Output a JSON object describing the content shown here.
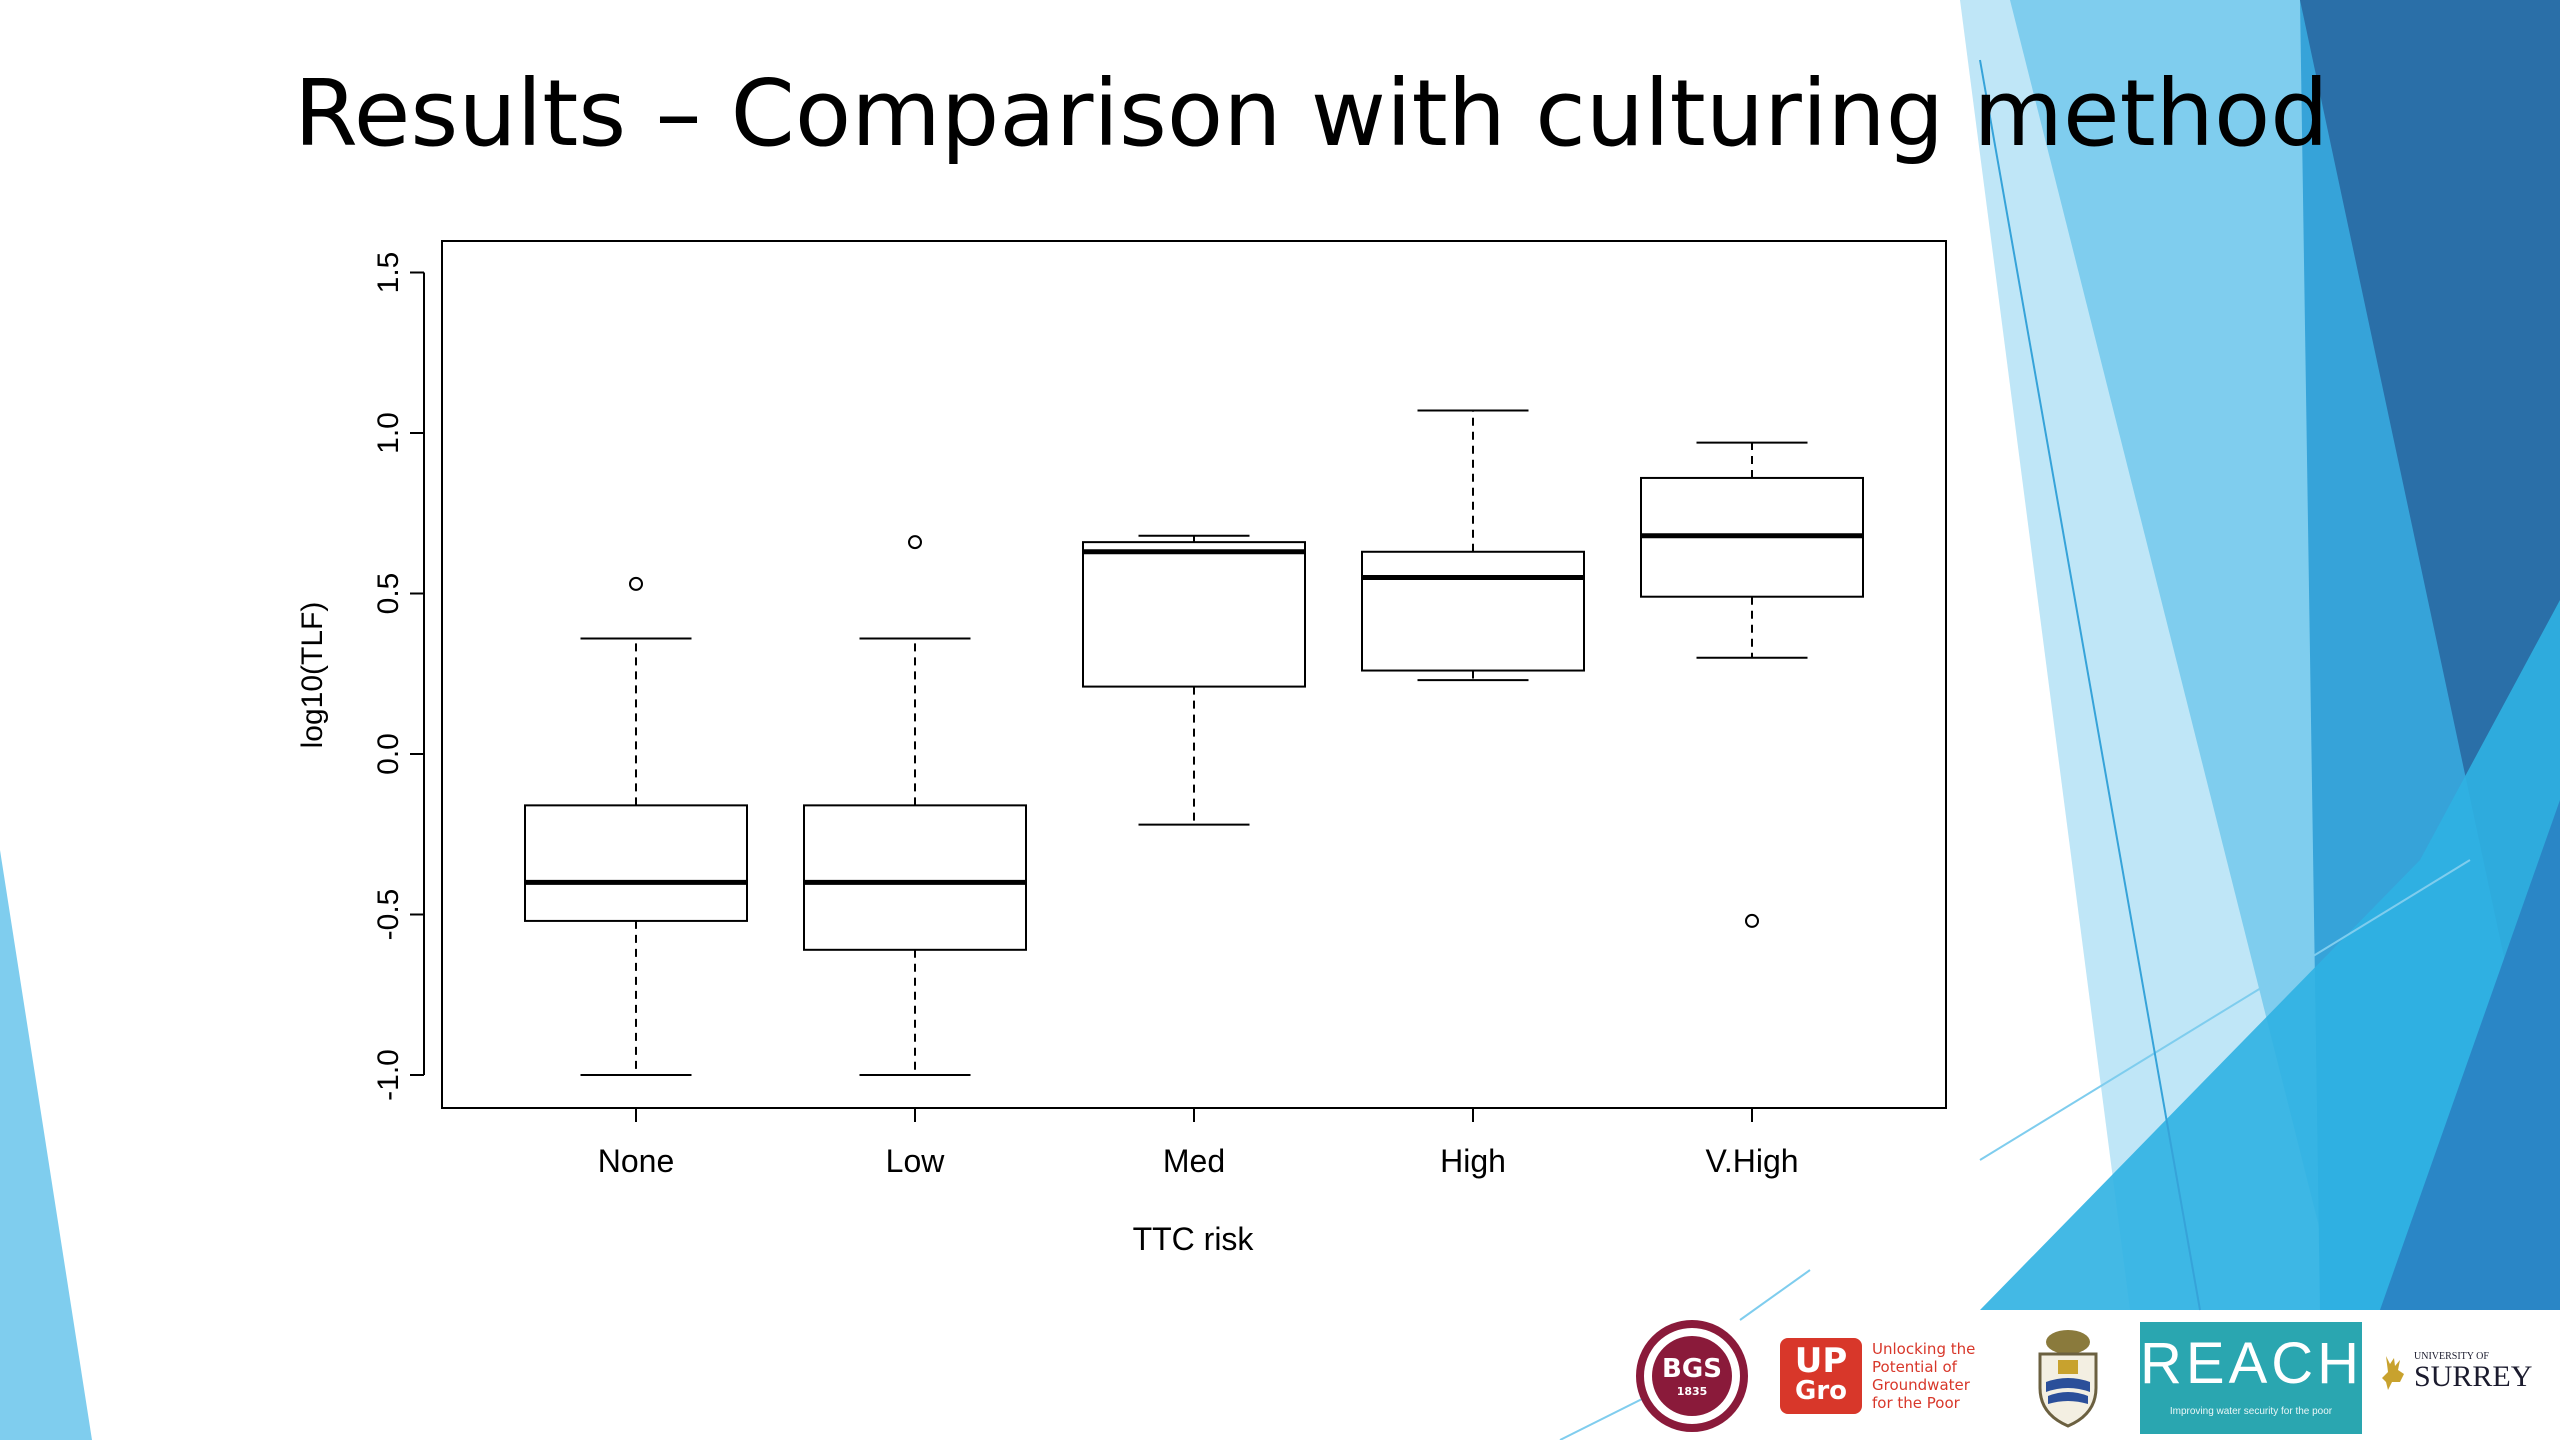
{
  "slide": {
    "title": "Results – Comparison with culturing method",
    "accent_colors": [
      "#2a6fa8",
      "#36a3d9",
      "#7fcdee",
      "#bfe6f7",
      "#2fb1e2"
    ]
  },
  "chart_data": {
    "type": "box",
    "title": "",
    "xlabel": "TTC risk",
    "ylabel": "log10(TLF)",
    "categories": [
      "None",
      "Low",
      "Med",
      "High",
      "V.High"
    ],
    "ylim": [
      -1.1,
      1.6
    ],
    "yticks": [
      -1.0,
      -0.5,
      0.0,
      0.5,
      1.0,
      1.5
    ],
    "ytick_labels": [
      "-1.0",
      "-0.5",
      "0.0",
      "0.5",
      "1.0",
      "1.5"
    ],
    "grid": false,
    "legend": "none",
    "boxes": [
      {
        "category": "None",
        "whisker_low": -1.0,
        "q1": -0.52,
        "median": -0.4,
        "q3": -0.16,
        "whisker_high": 0.36,
        "outliers": [
          0.53
        ]
      },
      {
        "category": "Low",
        "whisker_low": -1.0,
        "q1": -0.61,
        "median": -0.4,
        "q3": -0.16,
        "whisker_high": 0.36,
        "outliers": [
          0.66
        ]
      },
      {
        "category": "Med",
        "whisker_low": -0.22,
        "q1": 0.21,
        "median": 0.63,
        "q3": 0.66,
        "whisker_high": 0.68,
        "outliers": []
      },
      {
        "category": "High",
        "whisker_low": 0.23,
        "q1": 0.26,
        "median": 0.55,
        "q3": 0.63,
        "whisker_high": 1.07,
        "outliers": []
      },
      {
        "category": "V.High",
        "whisker_low": 0.3,
        "q1": 0.49,
        "median": 0.68,
        "q3": 0.86,
        "whisker_high": 0.97,
        "outliers": [
          -0.52
        ]
      }
    ]
  },
  "logos": {
    "bgs": {
      "text": "BGS",
      "year": "1835"
    },
    "upgro": {
      "mark_top": "UP",
      "mark_bottom": "Gro",
      "tagline": [
        "Unlocking the",
        "Potential of",
        "Groundwater",
        "for the Poor"
      ]
    },
    "reach": {
      "word": "REACH",
      "tagline": "Improving water security for the poor"
    },
    "surrey": {
      "small": "UNIVERSITY OF",
      "large": "SURREY"
    }
  }
}
